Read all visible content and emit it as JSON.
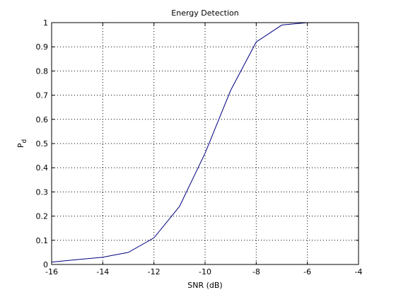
{
  "chart_data": {
    "type": "line",
    "title": "Energy Detection",
    "xlabel": "SNR (dB)",
    "ylabel": "P",
    "ylabel_subscript": "d",
    "xlim": [
      -16,
      -4
    ],
    "ylim": [
      0,
      1
    ],
    "xticks": [
      "-16",
      "-14",
      "-12",
      "-10",
      "-8",
      "-6",
      "-4"
    ],
    "yticks": [
      "0",
      "0.1",
      "0.2",
      "0.3",
      "0.4",
      "0.5",
      "0.6",
      "0.7",
      "0.8",
      "0.9",
      "1"
    ],
    "grid": true,
    "legend": "none",
    "series": [
      {
        "color": "#000080",
        "x": [
          -16,
          -15,
          -14,
          -13,
          -12,
          -11,
          -10,
          -9,
          -8,
          -7,
          -6
        ],
        "y": [
          0.01,
          0.02,
          0.03,
          0.05,
          0.11,
          0.24,
          0.46,
          0.72,
          0.92,
          0.99,
          1.0
        ]
      }
    ]
  }
}
